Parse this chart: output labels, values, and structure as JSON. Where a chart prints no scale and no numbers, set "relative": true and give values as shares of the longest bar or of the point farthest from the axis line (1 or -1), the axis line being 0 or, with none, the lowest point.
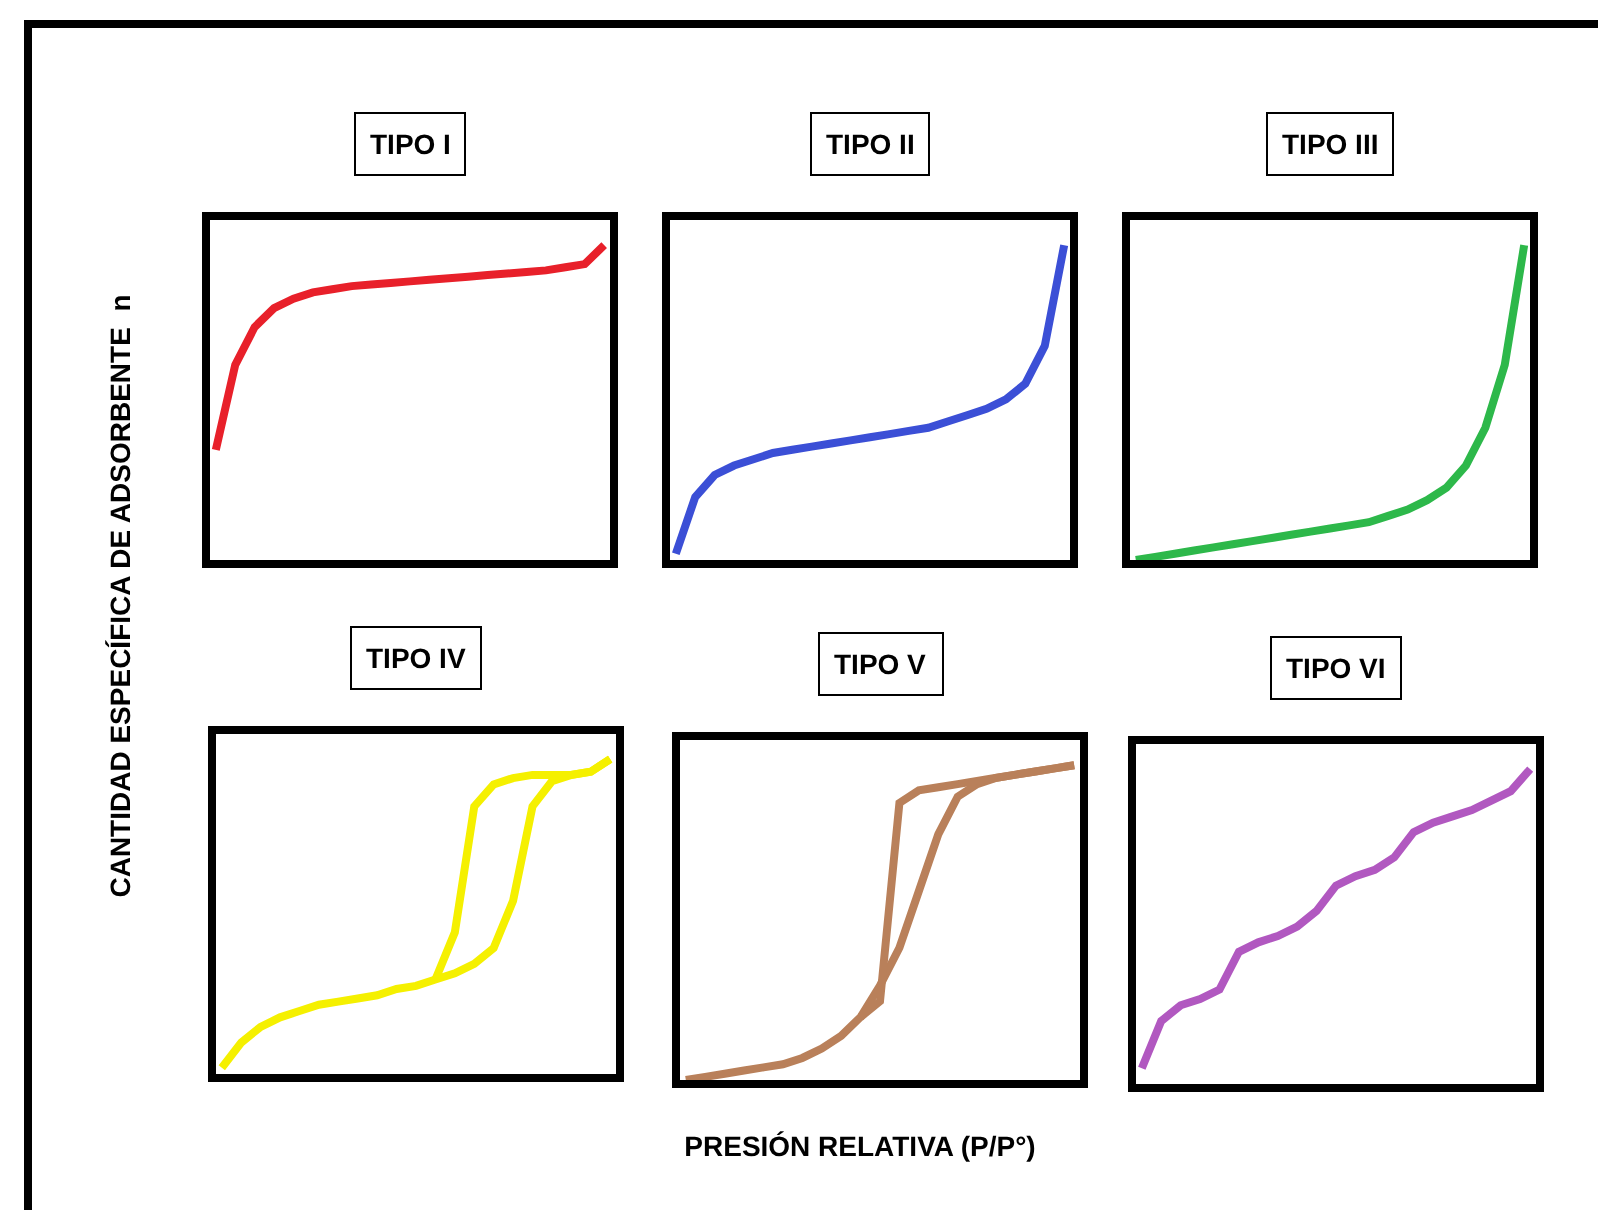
{
  "chart_data": [
    {
      "type": "line",
      "title": "TIPO I",
      "ylabel": "CANTIDAD ESPECÍFICA DE ADSORBENTE  n",
      "relative": true,
      "categories": [
        null,
        null,
        null,
        null,
        null,
        null,
        null,
        null,
        null,
        null,
        null,
        null,
        null,
        null,
        null,
        null,
        null,
        null,
        null,
        null,
        null
      ],
      "series": [
        {
          "color": "#e8202a",
          "values": [
            0.35,
            0.62,
            0.74,
            0.8,
            0.83,
            0.85,
            0.86,
            0.87,
            0.875,
            0.88,
            0.885,
            0.89,
            0.895,
            0.9,
            0.905,
            0.91,
            0.915,
            0.92,
            0.93,
            0.94,
            1.0
          ]
        }
      ]
    },
    {
      "type": "line",
      "title": "TIPO II",
      "relative": true,
      "categories": [
        null,
        null,
        null,
        null,
        null,
        null,
        null,
        null,
        null,
        null,
        null,
        null,
        null,
        null,
        null,
        null,
        null,
        null,
        null,
        null,
        null
      ],
      "series": [
        {
          "color": "#3b4fd6",
          "values": [
            0.02,
            0.2,
            0.27,
            0.3,
            0.32,
            0.34,
            0.35,
            0.36,
            0.37,
            0.38,
            0.39,
            0.4,
            0.41,
            0.42,
            0.44,
            0.46,
            0.48,
            0.51,
            0.56,
            0.68,
            1.0
          ]
        }
      ]
    },
    {
      "type": "line",
      "title": "TIPO III",
      "relative": true,
      "categories": [
        null,
        null,
        null,
        null,
        null,
        null,
        null,
        null,
        null,
        null,
        null,
        null,
        null,
        null,
        null,
        null,
        null,
        null,
        null,
        null,
        null
      ],
      "series": [
        {
          "color": "#2db84a",
          "values": [
            0,
            0.01,
            0.02,
            0.03,
            0.04,
            0.05,
            0.06,
            0.07,
            0.08,
            0.09,
            0.1,
            0.11,
            0.12,
            0.14,
            0.16,
            0.19,
            0.23,
            0.3,
            0.42,
            0.62,
            1.0
          ]
        }
      ]
    },
    {
      "type": "line",
      "title": "TIPO IV",
      "relative": true,
      "categories": [
        null,
        null,
        null,
        null,
        null,
        null,
        null,
        null,
        null,
        null,
        null,
        null,
        null,
        null,
        null,
        null,
        null,
        null,
        null,
        null,
        null
      ],
      "series": [
        {
          "color": "#f5f000",
          "values": [
            0.02,
            0.1,
            0.15,
            0.18,
            0.2,
            0.22,
            0.23,
            0.24,
            0.25,
            0.27,
            0.28,
            0.3,
            0.32,
            0.35,
            0.4,
            0.55,
            0.85,
            0.93,
            0.95,
            0.96,
            1.0
          ]
        },
        {
          "color": "#f5f000",
          "values": [
            null,
            null,
            null,
            null,
            null,
            null,
            null,
            null,
            null,
            null,
            null,
            0.3,
            0.45,
            0.85,
            0.92,
            0.94,
            0.95,
            0.95,
            0.95,
            0.96,
            1.0
          ]
        }
      ]
    },
    {
      "type": "line",
      "title": "TIPO V",
      "xlabel": "PRESIÓN RELATIVA (P/P°)",
      "relative": true,
      "categories": [
        null,
        null,
        null,
        null,
        null,
        null,
        null,
        null,
        null,
        null,
        null,
        null,
        null,
        null,
        null,
        null,
        null,
        null,
        null,
        null,
        null
      ],
      "series": [
        {
          "color": "#b9805a",
          "values": [
            0,
            0.01,
            0.02,
            0.03,
            0.04,
            0.05,
            0.07,
            0.1,
            0.14,
            0.2,
            0.3,
            0.42,
            0.6,
            0.78,
            0.9,
            0.94,
            0.96,
            0.97,
            0.98,
            0.99,
            1.0
          ]
        },
        {
          "color": "#b9805a",
          "values": [
            null,
            null,
            null,
            null,
            null,
            null,
            null,
            null,
            null,
            0.2,
            0.25,
            0.88,
            0.92,
            0.93,
            0.94,
            0.95,
            0.96,
            0.97,
            0.98,
            0.99,
            1.0
          ]
        }
      ]
    },
    {
      "type": "line",
      "title": "TIPO VI",
      "relative": true,
      "categories": [
        null,
        null,
        null,
        null,
        null,
        null,
        null,
        null,
        null,
        null,
        null,
        null,
        null,
        null,
        null,
        null,
        null,
        null,
        null,
        null,
        null
      ],
      "series": [
        {
          "color": "#b158c0",
          "values": [
            0.05,
            0.2,
            0.25,
            0.27,
            0.3,
            0.42,
            0.45,
            0.47,
            0.5,
            0.55,
            0.63,
            0.66,
            0.68,
            0.72,
            0.8,
            0.83,
            0.85,
            0.87,
            0.9,
            0.93,
            1.0
          ]
        }
      ]
    }
  ]
}
